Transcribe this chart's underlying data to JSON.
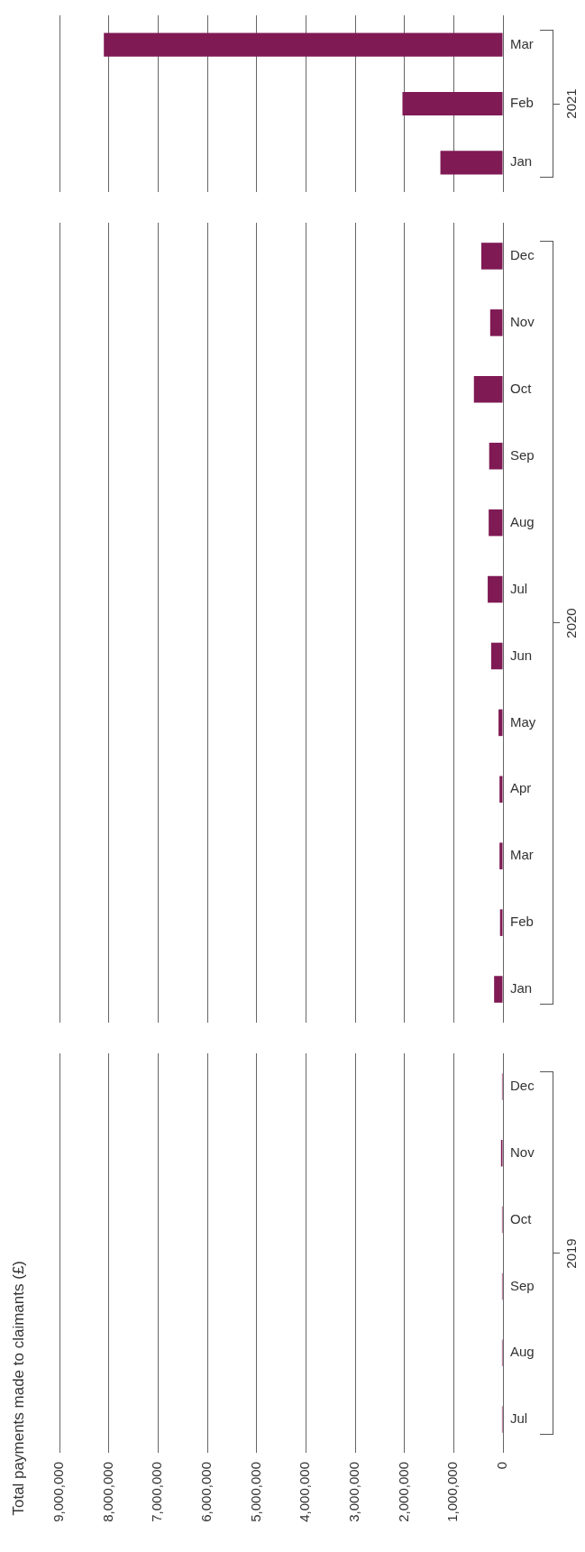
{
  "chart_data": [
    {
      "type": "bar",
      "orientation": "horizontal",
      "ylabel": "2021",
      "categories": [
        "Mar",
        "Feb",
        "Jan"
      ],
      "values": [
        8100000,
        2040000,
        1270000
      ],
      "color": "#7f1a54",
      "xlim": [
        9000000,
        0
      ],
      "xticks": [
        {
          "value": 0,
          "label": null
        },
        {
          "value": 1000000,
          "label": null
        },
        {
          "value": 2000000,
          "label": null
        },
        {
          "value": 3000000,
          "label": null
        },
        {
          "value": 4000000,
          "label": null
        },
        {
          "value": 5000000,
          "label": null
        },
        {
          "value": 6000000,
          "label": null
        },
        {
          "value": 7000000,
          "label": null
        },
        {
          "value": 8000000,
          "label": null
        },
        {
          "value": 9000000,
          "label": null
        }
      ],
      "grid": "x",
      "tick_labels": "y"
    },
    {
      "type": "bar",
      "orientation": "horizontal",
      "ylabel": "2020",
      "categories": [
        "Dec",
        "Nov",
        "Oct",
        "Sep",
        "Aug",
        "Jul",
        "Jun",
        "May",
        "Apr",
        "Mar",
        "Feb",
        "Jan"
      ],
      "values": [
        440000,
        260000,
        590000,
        280000,
        290000,
        310000,
        240000,
        90000,
        70000,
        70000,
        60000,
        180000
      ],
      "color": "#7f1a54",
      "xlim": [
        9000000,
        0
      ],
      "xticks": [
        {
          "value": 0,
          "label": null
        },
        {
          "value": 1000000,
          "label": null
        },
        {
          "value": 2000000,
          "label": null
        },
        {
          "value": 3000000,
          "label": null
        },
        {
          "value": 4000000,
          "label": null
        },
        {
          "value": 5000000,
          "label": null
        },
        {
          "value": 6000000,
          "label": null
        },
        {
          "value": 7000000,
          "label": null
        },
        {
          "value": 8000000,
          "label": null
        },
        {
          "value": 9000000,
          "label": null
        }
      ],
      "grid": "x",
      "tick_labels": "y"
    },
    {
      "type": "bar",
      "orientation": "horizontal",
      "ylabel": "2019",
      "title": "Total payments made to claimants (£)",
      "categories": [
        "Dec",
        "Nov",
        "Oct",
        "Sep",
        "Aug",
        "Jul"
      ],
      "values": [
        20000,
        40000,
        20000,
        20000,
        20000,
        20000
      ],
      "color": "#7f1a54",
      "xlim": [
        9000000,
        0
      ],
      "xticks": [
        0,
        {
          "value": 1000000,
          "label": "1,000,000"
        },
        {
          "value": 2000000,
          "label": "2,000,000"
        },
        {
          "value": 3000000,
          "label": "3,000,000"
        },
        {
          "value": 4000000,
          "label": "4,000,000"
        },
        {
          "value": 5000000,
          "label": "5,000,000"
        },
        {
          "value": 6000000,
          "label": "6,000,000"
        },
        {
          "value": 7000000,
          "label": "7,000,000"
        },
        {
          "value": 8000000,
          "label": "8,000,000"
        },
        {
          "value": 9000000,
          "label": "9,000,000"
        }
      ],
      "grid": "x"
    }
  ]
}
